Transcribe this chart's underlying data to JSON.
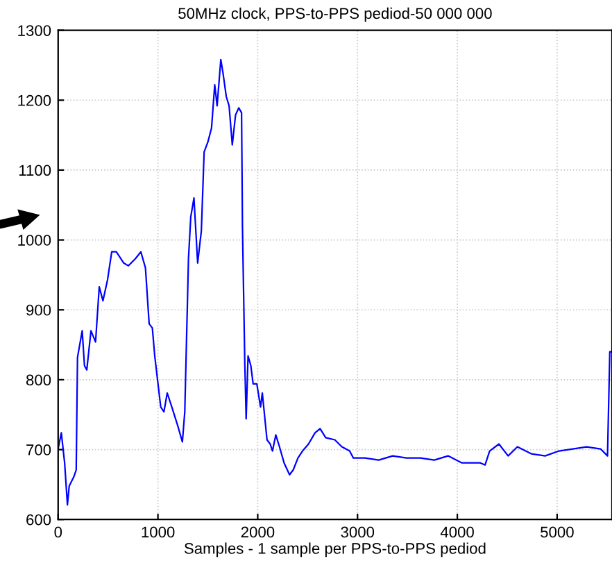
{
  "chart_data": {
    "type": "line",
    "title": "50MHz clock, PPS-to-PPS pediod-50 000 000",
    "xlabel": "Samples - 1 sample per PPS-to-PPS pediod",
    "xlim": [
      0,
      5550
    ],
    "xticks": [
      0,
      1000,
      2000,
      3000,
      4000,
      5000
    ],
    "ylim": [
      600,
      1300
    ],
    "yticks": [
      600,
      700,
      800,
      900,
      1000,
      1100,
      1200,
      1300
    ],
    "grid": true,
    "line_style": "solid",
    "series": [
      {
        "color": "#0000ff",
        "x": [
          0,
          32,
          65,
          93,
          111,
          157,
          181,
          194,
          241,
          264,
          287,
          329,
          375,
          412,
          449,
          495,
          537,
          583,
          657,
          704,
          773,
          829,
          875,
          912,
          944,
          968,
          1028,
          1060,
          1093,
          1139,
          1199,
          1245,
          1269,
          1296,
          1306,
          1329,
          1361,
          1398,
          1435,
          1463,
          1500,
          1537,
          1569,
          1593,
          1630,
          1653,
          1685,
          1713,
          1745,
          1778,
          1810,
          1838,
          1847,
          1870,
          1884,
          1903,
          1931,
          1954,
          1991,
          2028,
          2046,
          2093,
          2125,
          2148,
          2181,
          2218,
          2264,
          2319,
          2356,
          2403,
          2449,
          2509,
          2574,
          2625,
          2681,
          2773,
          2843,
          2921,
          2958,
          3074,
          3213,
          3352,
          3491,
          3630,
          3769,
          3907,
          4046,
          4231,
          4278,
          4324,
          4417,
          4509,
          4602,
          4741,
          4880,
          5019,
          5157,
          5296,
          5435,
          5505,
          5528,
          5542
        ],
        "values": [
          701,
          724,
          681,
          621,
          648,
          661,
          671,
          832,
          870,
          820,
          814,
          870,
          854,
          933,
          913,
          943,
          983,
          983,
          967,
          963,
          973,
          983,
          960,
          880,
          874,
          834,
          761,
          754,
          781,
          761,
          734,
          711,
          754,
          913,
          973,
          1033,
          1060,
          967,
          1013,
          1126,
          1140,
          1160,
          1222,
          1192,
          1258,
          1238,
          1205,
          1192,
          1136,
          1179,
          1189,
          1182,
          1019,
          827,
          744,
          834,
          820,
          794,
          794,
          761,
          781,
          714,
          708,
          698,
          721,
          704,
          681,
          664,
          671,
          688,
          698,
          708,
          724,
          730,
          717,
          714,
          704,
          698,
          688,
          688,
          685,
          691,
          688,
          688,
          685,
          691,
          681,
          681,
          678,
          698,
          708,
          691,
          704,
          694,
          691,
          698,
          701,
          704,
          701,
          691,
          840,
          840
        ]
      }
    ]
  }
}
